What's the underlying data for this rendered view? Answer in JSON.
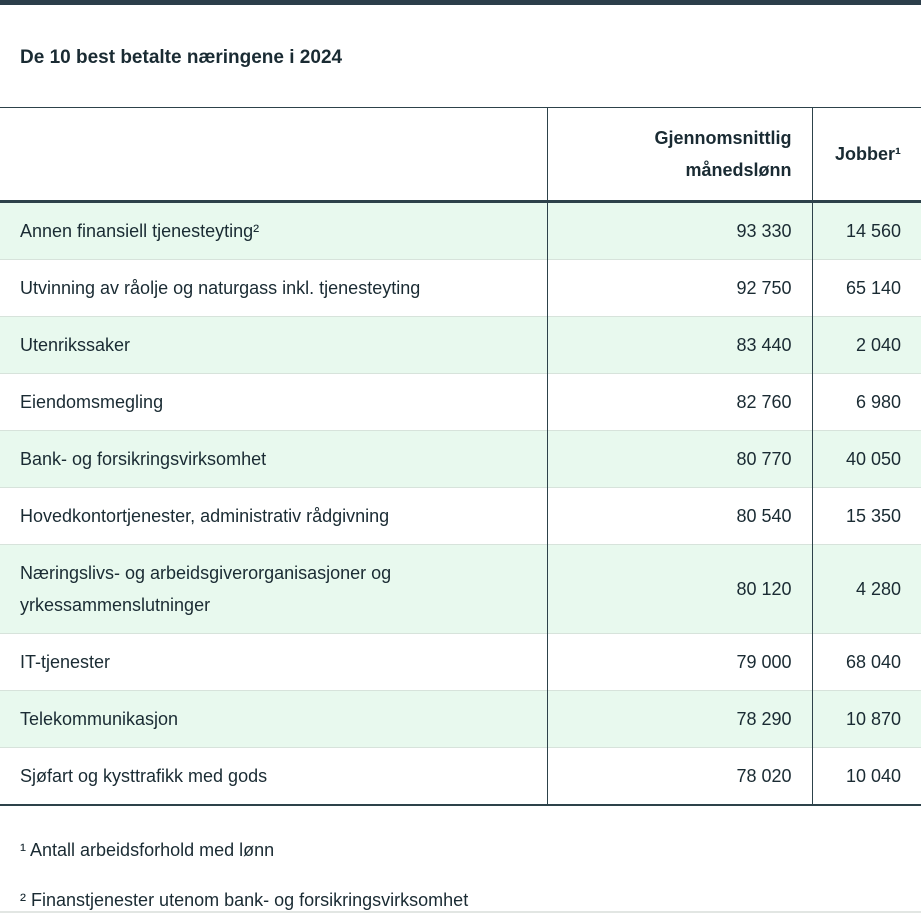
{
  "page": {
    "title": "De 10 best betalte næringene i 2024"
  },
  "table": {
    "header": {
      "industry": "",
      "salary": "Gjennomsnittlig månedslønn",
      "jobs": "Jobber¹"
    },
    "rows": [
      {
        "industry": "Annen finansiell tjenesteyting²",
        "salary": "93 330",
        "jobs": "14 560"
      },
      {
        "industry": "Utvinning av råolje og naturgass inkl. tjenesteyting",
        "salary": "92 750",
        "jobs": "65 140"
      },
      {
        "industry": "Utenrikssaker",
        "salary": "83 440",
        "jobs": "2 040"
      },
      {
        "industry": "Eiendomsmegling",
        "salary": "82 760",
        "jobs": "6 980"
      },
      {
        "industry": "Bank- og forsikringsvirksomhet",
        "salary": "80 770",
        "jobs": "40 050"
      },
      {
        "industry": "Hovedkontortjenester, administrativ rådgivning",
        "salary": "80 540",
        "jobs": "15 350"
      },
      {
        "industry": "Næringslivs- og arbeidsgiverorganisasjoner og yrkessammenslutninger",
        "salary": "80 120",
        "jobs": "4 280"
      },
      {
        "industry": "IT-tjenester",
        "salary": "79 000",
        "jobs": "68 040"
      },
      {
        "industry": "Telekommunikasjon",
        "salary": "78 290",
        "jobs": "10 870"
      },
      {
        "industry": "Sjøfart og kysttrafikk med gods",
        "salary": "78 020",
        "jobs": "10 040"
      }
    ]
  },
  "footnotes": [
    "¹ Antall arbeidsforhold med lønn",
    "² Finanstjenester utenom bank- og forsikringsvirksomhet"
  ],
  "colors": {
    "top_bar": "#2c3e4a",
    "dark_border": "#2d424a",
    "accent_row": "#e8f9ee",
    "row_separator": "#d7e3db",
    "text": "#1a2b33",
    "bottom_divider": "#e2e6e3"
  }
}
